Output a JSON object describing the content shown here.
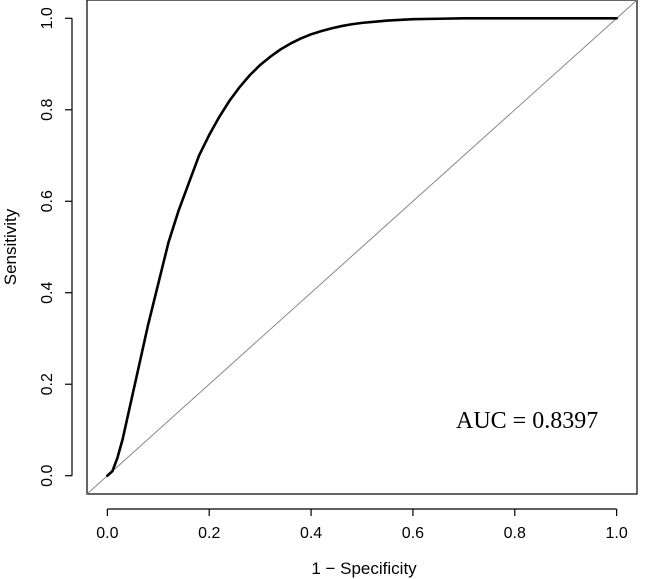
{
  "chart_data": {
    "type": "line",
    "title": "",
    "xlabel": "1 − Specificity",
    "ylabel": "Sensitivity",
    "xlim": [
      -0.04,
      1.04
    ],
    "ylim": [
      -0.04,
      1.04
    ],
    "xticks": [
      0.0,
      0.2,
      0.4,
      0.6,
      0.8,
      1.0
    ],
    "yticks": [
      0.0,
      0.2,
      0.4,
      0.6,
      0.8,
      1.0
    ],
    "xtick_labels": [
      "0.0",
      "0.2",
      "0.4",
      "0.6",
      "0.8",
      "1.0"
    ],
    "ytick_labels": [
      "0.0",
      "0.2",
      "0.4",
      "0.6",
      "0.8",
      "1.0"
    ],
    "grid": false,
    "annotation": "AUC = 0.8397",
    "series": [
      {
        "name": "ROC curve",
        "color": "#000000",
        "x": [
          0.0,
          0.01,
          0.02,
          0.03,
          0.04,
          0.05,
          0.06,
          0.07,
          0.08,
          0.1,
          0.12,
          0.14,
          0.16,
          0.18,
          0.2,
          0.22,
          0.24,
          0.26,
          0.28,
          0.3,
          0.32,
          0.34,
          0.36,
          0.38,
          0.4,
          0.42,
          0.44,
          0.46,
          0.48,
          0.5,
          0.55,
          0.6,
          0.65,
          0.7,
          0.8,
          0.9,
          1.0
        ],
        "y": [
          0.0,
          0.01,
          0.04,
          0.08,
          0.13,
          0.18,
          0.23,
          0.28,
          0.33,
          0.42,
          0.51,
          0.58,
          0.64,
          0.7,
          0.745,
          0.785,
          0.82,
          0.85,
          0.876,
          0.898,
          0.916,
          0.932,
          0.945,
          0.956,
          0.965,
          0.972,
          0.978,
          0.983,
          0.987,
          0.99,
          0.995,
          0.998,
          0.999,
          1.0,
          1.0,
          1.0,
          1.0
        ]
      },
      {
        "name": "Reference line",
        "color": "#888888",
        "x": [
          -0.04,
          1.04
        ],
        "y": [
          -0.04,
          1.04
        ]
      }
    ]
  }
}
